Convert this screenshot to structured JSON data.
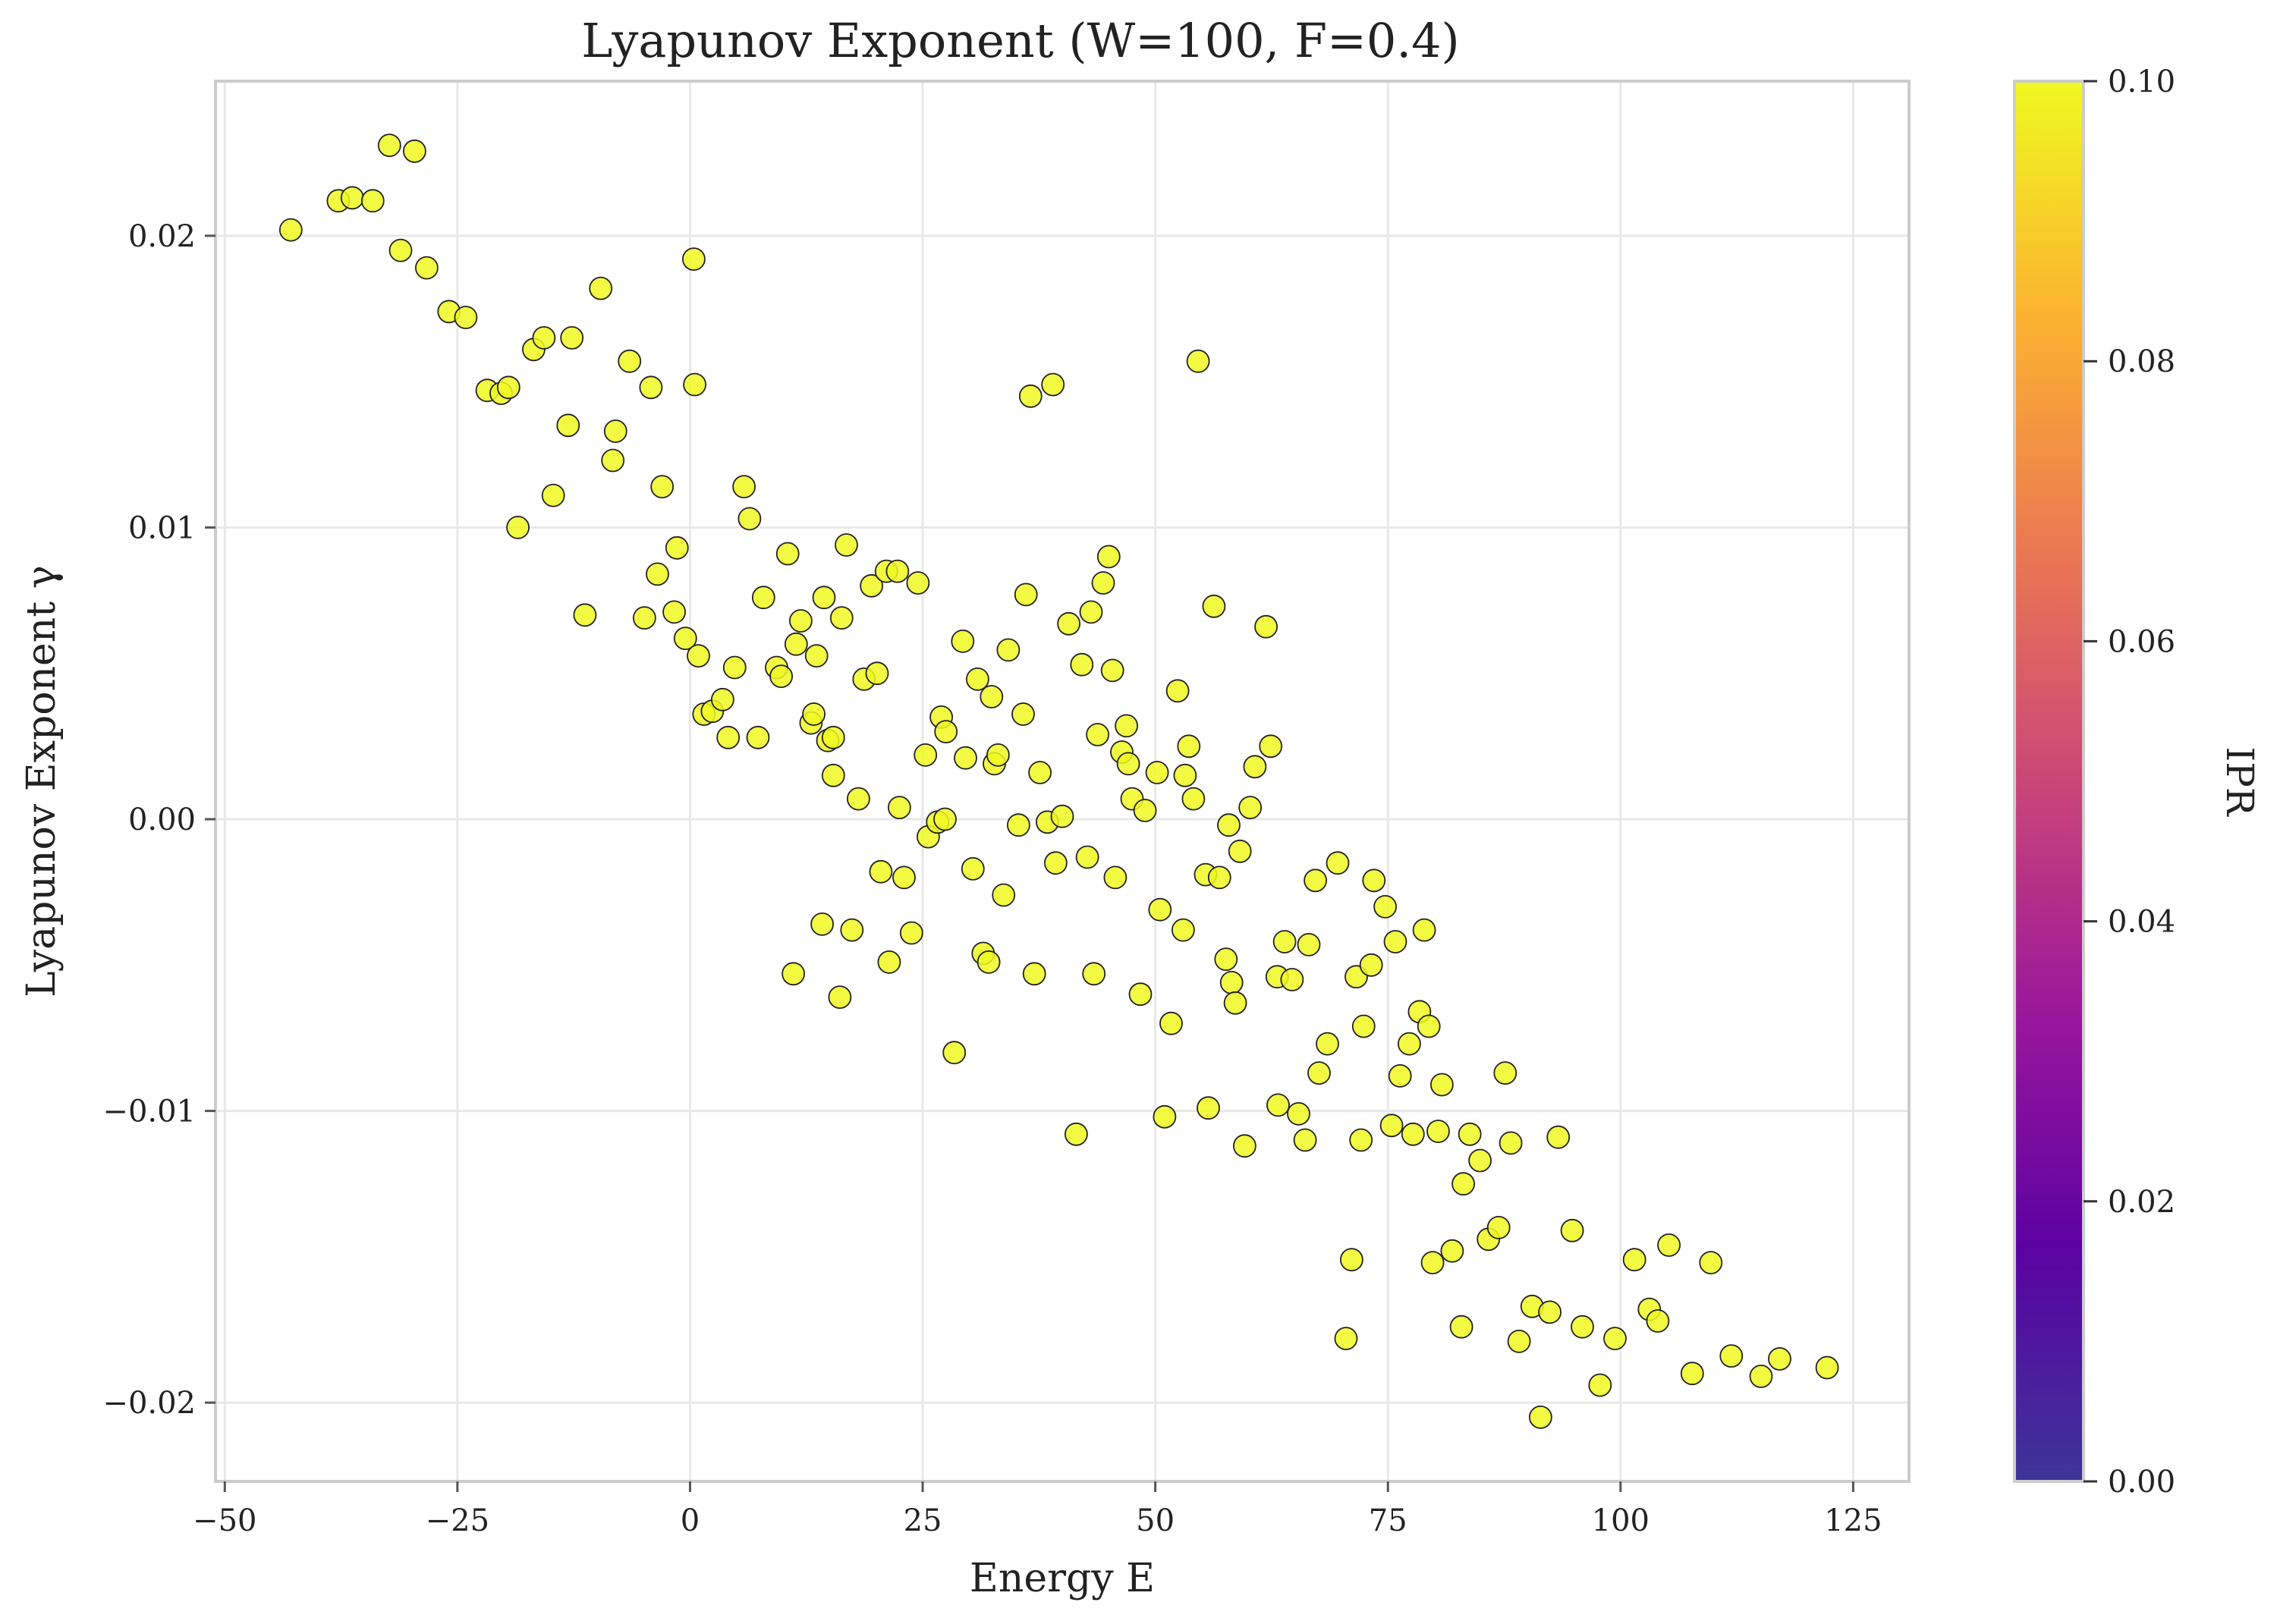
{
  "chart_data": {
    "type": "scatter",
    "title": "Lyapunov Exponent (W=100, F=0.4)",
    "xlabel": "Energy E",
    "ylabel": "Lyapunov Exponent γ",
    "xlim": [
      -51,
      131
    ],
    "ylim": [
      -0.0227,
      0.0253
    ],
    "xticks": [
      -50,
      -25,
      0,
      25,
      50,
      75,
      100,
      125
    ],
    "xtick_labels": [
      "−50",
      "−25",
      "0",
      "25",
      "50",
      "75",
      "100",
      "125"
    ],
    "yticks": [
      -0.02,
      -0.01,
      0.0,
      0.01,
      0.02
    ],
    "ytick_labels": [
      "−0.02",
      "−0.01",
      "0.00",
      "0.01",
      "0.02"
    ],
    "grid": true,
    "colorbar": {
      "label": "IPR",
      "range": [
        0.0,
        0.1
      ],
      "ticks": [
        0.0,
        0.02,
        0.04,
        0.06,
        0.08,
        0.1
      ],
      "tick_labels": [
        "0.00",
        "0.02",
        "0.04",
        "0.06",
        "0.08",
        "0.10"
      ],
      "colormap": [
        "#0d0887",
        "#5b02a3",
        "#9a179b",
        "#cb4678",
        "#eb7852",
        "#fbb32f",
        "#f0f921"
      ]
    },
    "marker_color": "#f0f921",
    "marker_edge_color": "#222222",
    "points": [
      [
        -42.9,
        0.0202
      ],
      [
        -37.8,
        0.0212
      ],
      [
        -36.3,
        0.0213
      ],
      [
        -34.1,
        0.0212
      ],
      [
        -32.3,
        0.0231
      ],
      [
        -29.6,
        0.0229
      ],
      [
        -31.1,
        0.0195
      ],
      [
        -28.3,
        0.0189
      ],
      [
        -25.9,
        0.0174
      ],
      [
        -24.1,
        0.0172
      ],
      [
        -21.8,
        0.0147
      ],
      [
        -20.3,
        0.0146
      ],
      [
        -19.5,
        0.0148
      ],
      [
        -16.8,
        0.0161
      ],
      [
        -15.7,
        0.0165
      ],
      [
        -12.7,
        0.0165
      ],
      [
        -9.6,
        0.0182
      ],
      [
        -6.5,
        0.0157
      ],
      [
        -4.2,
        0.0148
      ],
      [
        0.4,
        0.0192
      ],
      [
        0.5,
        0.0149
      ],
      [
        -13.1,
        0.0135
      ],
      [
        -8.0,
        0.0133
      ],
      [
        -8.3,
        0.0123
      ],
      [
        -3.0,
        0.0114
      ],
      [
        -14.7,
        0.0111
      ],
      [
        -18.5,
        0.01
      ],
      [
        -11.3,
        0.007
      ],
      [
        -4.9,
        0.0069
      ],
      [
        -3.5,
        0.0084
      ],
      [
        -1.4,
        0.0093
      ],
      [
        -1.7,
        0.0071
      ],
      [
        -0.5,
        0.0062
      ],
      [
        0.9,
        0.0056
      ],
      [
        1.5,
        0.0036
      ],
      [
        2.4,
        0.0037
      ],
      [
        3.5,
        0.0041
      ],
      [
        4.1,
        0.0028
      ],
      [
        4.8,
        0.0052
      ],
      [
        5.8,
        0.0114
      ],
      [
        6.4,
        0.0103
      ],
      [
        7.3,
        0.0028
      ],
      [
        7.9,
        0.0076
      ],
      [
        9.3,
        0.0052
      ],
      [
        9.8,
        0.0049
      ],
      [
        10.5,
        0.0091
      ],
      [
        11.4,
        0.006
      ],
      [
        11.1,
        -0.0053
      ],
      [
        11.9,
        0.0068
      ],
      [
        13.0,
        0.0033
      ],
      [
        13.3,
        0.0036
      ],
      [
        13.6,
        0.0056
      ],
      [
        14.4,
        0.0076
      ],
      [
        14.8,
        0.0027
      ],
      [
        15.4,
        0.0028
      ],
      [
        15.4,
        0.0015
      ],
      [
        16.3,
        0.0069
      ],
      [
        16.8,
        0.0094
      ],
      [
        14.2,
        -0.0036
      ],
      [
        17.4,
        -0.0038
      ],
      [
        16.1,
        -0.0061
      ],
      [
        18.1,
        0.0007
      ],
      [
        18.7,
        0.0048
      ],
      [
        19.5,
        0.008
      ],
      [
        20.1,
        0.005
      ],
      [
        21.1,
        0.0085
      ],
      [
        22.3,
        0.0085
      ],
      [
        24.5,
        0.0081
      ],
      [
        20.5,
        -0.0018
      ],
      [
        21.4,
        -0.0049
      ],
      [
        22.5,
        0.0004
      ],
      [
        23.0,
        -0.002
      ],
      [
        23.8,
        -0.0039
      ],
      [
        25.3,
        0.0022
      ],
      [
        25.6,
        -0.0006
      ],
      [
        26.6,
        -0.0001
      ],
      [
        27.0,
        0.0035
      ],
      [
        27.5,
        0.003
      ],
      [
        27.4,
        0.0
      ],
      [
        28.4,
        -0.008
      ],
      [
        29.3,
        0.0061
      ],
      [
        29.6,
        0.0021
      ],
      [
        30.4,
        -0.0017
      ],
      [
        30.9,
        0.0048
      ],
      [
        31.5,
        -0.0046
      ],
      [
        32.1,
        -0.0049
      ],
      [
        32.4,
        0.0042
      ],
      [
        32.7,
        0.0019
      ],
      [
        33.1,
        0.0022
      ],
      [
        33.7,
        -0.0026
      ],
      [
        34.2,
        0.0058
      ],
      [
        35.3,
        -0.0002
      ],
      [
        35.8,
        0.0036
      ],
      [
        36.1,
        0.0077
      ],
      [
        36.6,
        0.0145
      ],
      [
        37.0,
        -0.0053
      ],
      [
        37.6,
        0.0016
      ],
      [
        38.4,
        -0.0001
      ],
      [
        39.0,
        0.0149
      ],
      [
        39.3,
        -0.0015
      ],
      [
        40.0,
        0.0001
      ],
      [
        40.7,
        0.0067
      ],
      [
        41.5,
        -0.0108
      ],
      [
        42.1,
        0.0053
      ],
      [
        42.7,
        -0.0013
      ],
      [
        43.1,
        0.0071
      ],
      [
        43.4,
        -0.0053
      ],
      [
        43.8,
        0.0029
      ],
      [
        44.4,
        0.0081
      ],
      [
        45.0,
        0.009
      ],
      [
        45.4,
        0.0051
      ],
      [
        45.7,
        -0.002
      ],
      [
        46.4,
        0.0023
      ],
      [
        46.9,
        0.0032
      ],
      [
        47.1,
        0.0019
      ],
      [
        47.5,
        0.0007
      ],
      [
        48.4,
        -0.006
      ],
      [
        48.9,
        0.0003
      ],
      [
        50.2,
        0.0016
      ],
      [
        50.5,
        -0.0031
      ],
      [
        51.0,
        -0.0102
      ],
      [
        51.7,
        -0.007
      ],
      [
        52.4,
        0.0044
      ],
      [
        53.0,
        -0.0038
      ],
      [
        53.2,
        0.0015
      ],
      [
        53.6,
        0.0025
      ],
      [
        54.1,
        0.0007
      ],
      [
        54.6,
        0.0157
      ],
      [
        55.4,
        -0.0019
      ],
      [
        55.7,
        -0.0099
      ],
      [
        56.3,
        0.0073
      ],
      [
        56.9,
        -0.002
      ],
      [
        57.6,
        -0.0048
      ],
      [
        57.9,
        -0.0002
      ],
      [
        58.2,
        -0.0056
      ],
      [
        58.6,
        -0.0063
      ],
      [
        59.1,
        -0.0011
      ],
      [
        59.6,
        -0.0112
      ],
      [
        60.2,
        0.0004
      ],
      [
        60.7,
        0.0018
      ],
      [
        61.9,
        0.0066
      ],
      [
        62.4,
        0.0025
      ],
      [
        63.1,
        -0.0054
      ],
      [
        63.2,
        -0.0098
      ],
      [
        63.9,
        -0.0042
      ],
      [
        64.7,
        -0.0055
      ],
      [
        65.4,
        -0.0101
      ],
      [
        66.1,
        -0.011
      ],
      [
        66.5,
        -0.0043
      ],
      [
        67.2,
        -0.0021
      ],
      [
        67.6,
        -0.0087
      ],
      [
        68.5,
        -0.0077
      ],
      [
        69.6,
        -0.0015
      ],
      [
        70.5,
        -0.0178
      ],
      [
        71.1,
        -0.0151
      ],
      [
        71.6,
        -0.0054
      ],
      [
        72.1,
        -0.011
      ],
      [
        72.4,
        -0.0071
      ],
      [
        73.2,
        -0.005
      ],
      [
        73.5,
        -0.0021
      ],
      [
        74.7,
        -0.003
      ],
      [
        75.4,
        -0.0105
      ],
      [
        75.8,
        -0.0042
      ],
      [
        76.3,
        -0.0088
      ],
      [
        77.3,
        -0.0077
      ],
      [
        77.7,
        -0.0108
      ],
      [
        78.4,
        -0.0066
      ],
      [
        78.9,
        -0.0038
      ],
      [
        79.4,
        -0.0071
      ],
      [
        79.8,
        -0.0152
      ],
      [
        80.4,
        -0.0107
      ],
      [
        80.8,
        -0.0091
      ],
      [
        81.9,
        -0.0148
      ],
      [
        82.9,
        -0.0174
      ],
      [
        83.1,
        -0.0125
      ],
      [
        83.8,
        -0.0108
      ],
      [
        84.9,
        -0.0117
      ],
      [
        85.8,
        -0.0144
      ],
      [
        86.9,
        -0.014
      ],
      [
        87.6,
        -0.0087
      ],
      [
        88.2,
        -0.0111
      ],
      [
        89.1,
        -0.0179
      ],
      [
        90.5,
        -0.0167
      ],
      [
        91.4,
        -0.0205
      ],
      [
        92.4,
        -0.0169
      ],
      [
        93.3,
        -0.0109
      ],
      [
        94.8,
        -0.0141
      ],
      [
        95.9,
        -0.0174
      ],
      [
        97.8,
        -0.0194
      ],
      [
        99.4,
        -0.0178
      ],
      [
        101.5,
        -0.0151
      ],
      [
        103.1,
        -0.0168
      ],
      [
        104.0,
        -0.0172
      ],
      [
        105.2,
        -0.0146
      ],
      [
        107.7,
        -0.019
      ],
      [
        109.7,
        -0.0152
      ],
      [
        111.9,
        -0.0184
      ],
      [
        115.1,
        -0.0191
      ],
      [
        117.1,
        -0.0185
      ],
      [
        122.2,
        -0.0188
      ]
    ]
  }
}
